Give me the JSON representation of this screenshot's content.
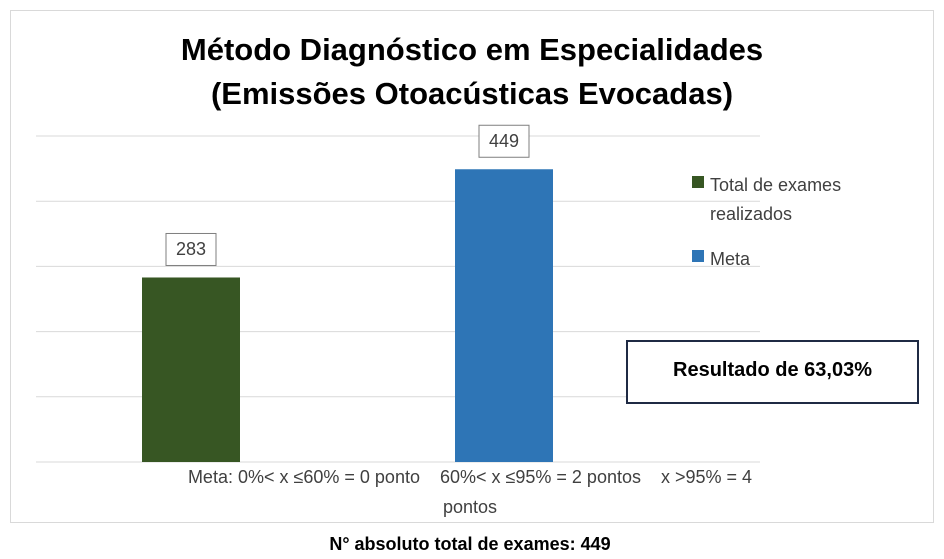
{
  "chart_data": {
    "type": "bar",
    "title": [
      "Método Diagnóstico em Especialidades",
      "(Emissões Otoacústicas Evocadas)"
    ],
    "categories": [
      null
    ],
    "series": [
      {
        "name": "Total de exames realizados",
        "color": "#375623",
        "values": [
          283
        ]
      },
      {
        "name": "Meta",
        "color": "#2e75b6",
        "values": [
          449
        ]
      }
    ],
    "ylim": [
      0,
      500
    ],
    "yticks": [
      0,
      100,
      200,
      300,
      400,
      500
    ],
    "grid": true,
    "legend": "right",
    "annotations": [
      "Resultado de 63,03%"
    ],
    "note": [
      "Meta: 0%< x ≤60% = 0 ponto    60%< x ≤95% = 2 pontos    x >95% = 4",
      "pontos"
    ],
    "footer": "N° absoluto total de exames: 449"
  }
}
